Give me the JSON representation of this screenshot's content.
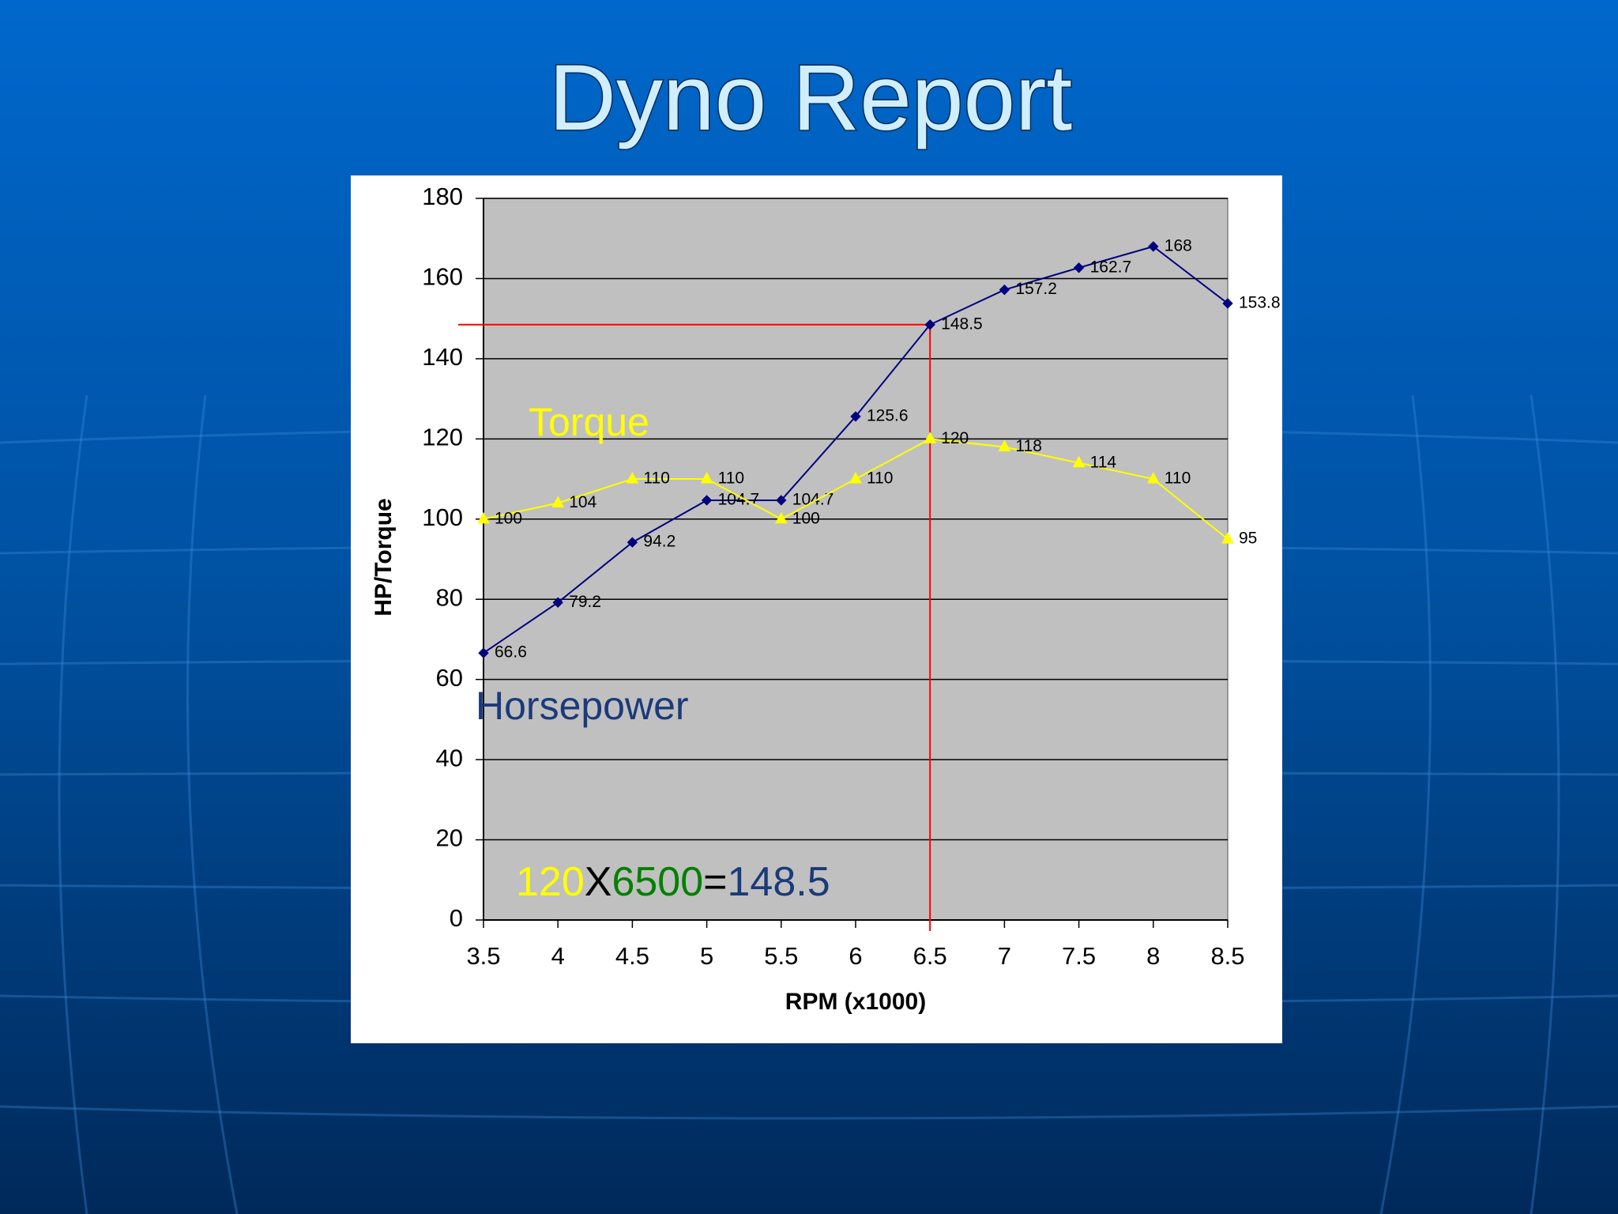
{
  "chart_data": {
    "type": "line",
    "title": "Dyno Report",
    "x_label": "RPM (x1000)",
    "y_label": "HP/Torque",
    "x": [
      3.5,
      4,
      4.5,
      5,
      5.5,
      6,
      6.5,
      7,
      7.5,
      8,
      8.5
    ],
    "series": [
      {
        "name": "Horsepower",
        "color": "#000080",
        "marker": "diamond",
        "values": [
          66.6,
          79.2,
          94.2,
          104.7,
          104.7,
          125.6,
          148.5,
          157.2,
          162.7,
          168,
          153.8
        ]
      },
      {
        "name": "Torque",
        "color": "#ffff00",
        "marker": "triangle",
        "values": [
          100,
          104,
          110,
          110,
          100,
          110,
          120,
          118,
          114,
          110,
          95
        ]
      }
    ],
    "xlim": [
      3.5,
      8.5
    ],
    "xticks": [
      3.5,
      4,
      4.5,
      5,
      5.5,
      6,
      6.5,
      7,
      7.5,
      8,
      8.5
    ],
    "ylim": [
      0,
      180
    ],
    "yticks": [
      0,
      20,
      40,
      60,
      80,
      100,
      120,
      140,
      160,
      180
    ],
    "grid": true,
    "plot_background": "#c0c0c0",
    "reference": {
      "x": 6.5,
      "y": 148.5,
      "color": "#ff0000"
    },
    "annotations": [
      {
        "text": "Torque",
        "color": "#ffff00"
      },
      {
        "text": "Horsepower",
        "color": "#1a3a7a"
      }
    ],
    "formula": [
      {
        "text": "120",
        "color": "#ffff00"
      },
      {
        "text": "X",
        "color": "#000000"
      },
      {
        "text": "6500",
        "color": "#008000"
      },
      {
        "text": "=",
        "color": "#000000"
      },
      {
        "text": "148.5",
        "color": "#1a3a7a"
      }
    ]
  }
}
